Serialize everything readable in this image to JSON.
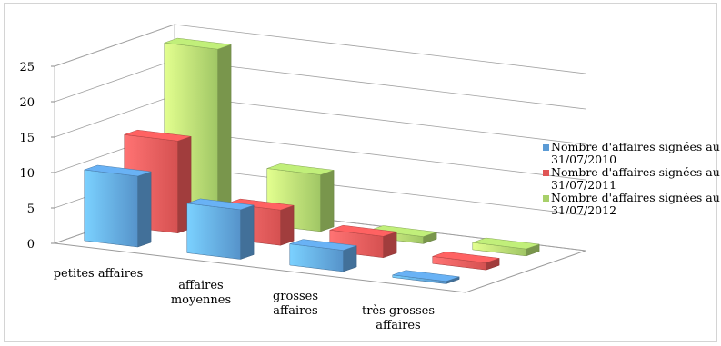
{
  "chart_data": {
    "type": "bar",
    "subtype": "3d-clustered-column",
    "categories": [
      "petites affaires",
      "affaires moyennes",
      "grosses affaires",
      "très grosses affaires"
    ],
    "category_lines": [
      [
        "petites affaires"
      ],
      [
        "affaires",
        "moyennes"
      ],
      [
        "grosses",
        "affaires"
      ],
      [
        "très grosses",
        "affaires"
      ]
    ],
    "series": [
      {
        "name": "Nombre d'affaires signées au 31/07/2010",
        "name_lines": [
          "Nombre d'affaires signées au",
          "31/07/2010"
        ],
        "color": "#5b9bd5",
        "values": [
          10,
          7,
          3,
          0
        ]
      },
      {
        "name": "Nombre d'affaires signées au 31/07/2011",
        "name_lines": [
          "Nombre d'affaires signées au",
          "31/07/2011"
        ],
        "color": "#e05555",
        "values": [
          13,
          5,
          3,
          1
        ]
      },
      {
        "name": "Nombre d'affaires signées au 31/07/2012",
        "name_lines": [
          "Nombre d'affaires signées au",
          "31/07/2012"
        ],
        "color": "#a8d06a",
        "values": [
          24,
          8,
          1,
          1
        ]
      }
    ],
    "yticks": [
      0,
      5,
      10,
      15,
      20,
      25
    ],
    "ylim": [
      0,
      25
    ],
    "grid": true,
    "legend": "right",
    "title": "",
    "xlabel": "",
    "ylabel": ""
  }
}
